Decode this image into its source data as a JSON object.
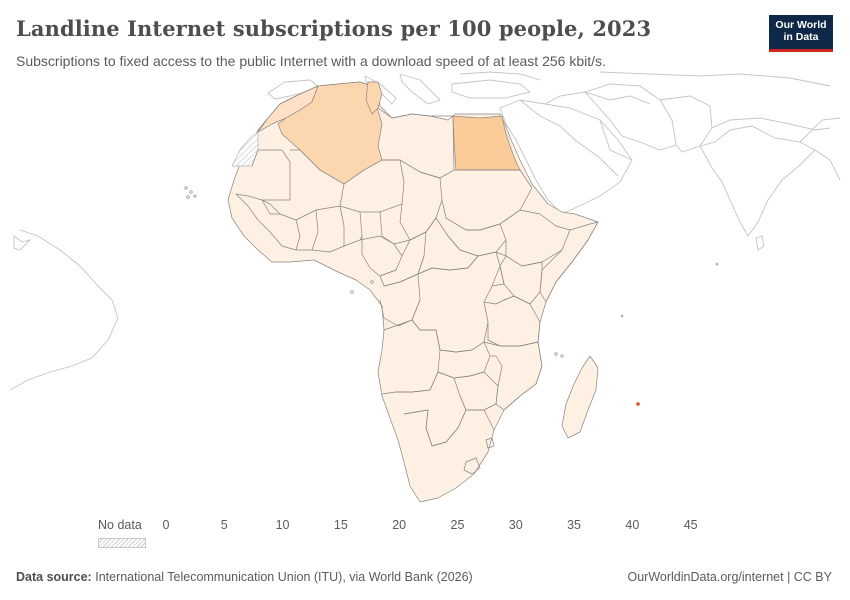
{
  "header": {
    "title": "Landline Internet subscriptions per 100 people, 2023",
    "subtitle": "Subscriptions to fixed access to the public Internet with a download speed of at least 256 kbit/s."
  },
  "logo": {
    "line1": "Our World",
    "line2": "in Data"
  },
  "legend": {
    "no_data_label": "No data",
    "ticks": [
      "0",
      "5",
      "10",
      "15",
      "20",
      "25",
      "30",
      "35",
      "40",
      "45"
    ],
    "bin_colors": [
      "#fef0e3",
      "#fde0c6",
      "#fcc79b",
      "#f9a66c",
      "#f58a46",
      "#ec6b22",
      "#d94f0c",
      "#b93f0a",
      "#923109",
      "#7a2806"
    ]
  },
  "map": {
    "region": "Africa",
    "colors": {
      "low": "#fef0e3",
      "mid": "#fcd6ae",
      "high": "#fbcb9a",
      "no_data": "#e6e6e6",
      "outline": "#bdbdbd",
      "border": "#7f7a76",
      "highlight_island": "#d2511a"
    }
  },
  "footer": {
    "source_label": "Data source:",
    "source_text": "International Telecommunication Union (ITU), via World Bank (2026)",
    "link": "OurWorldinData.org/internet | CC BY"
  }
}
